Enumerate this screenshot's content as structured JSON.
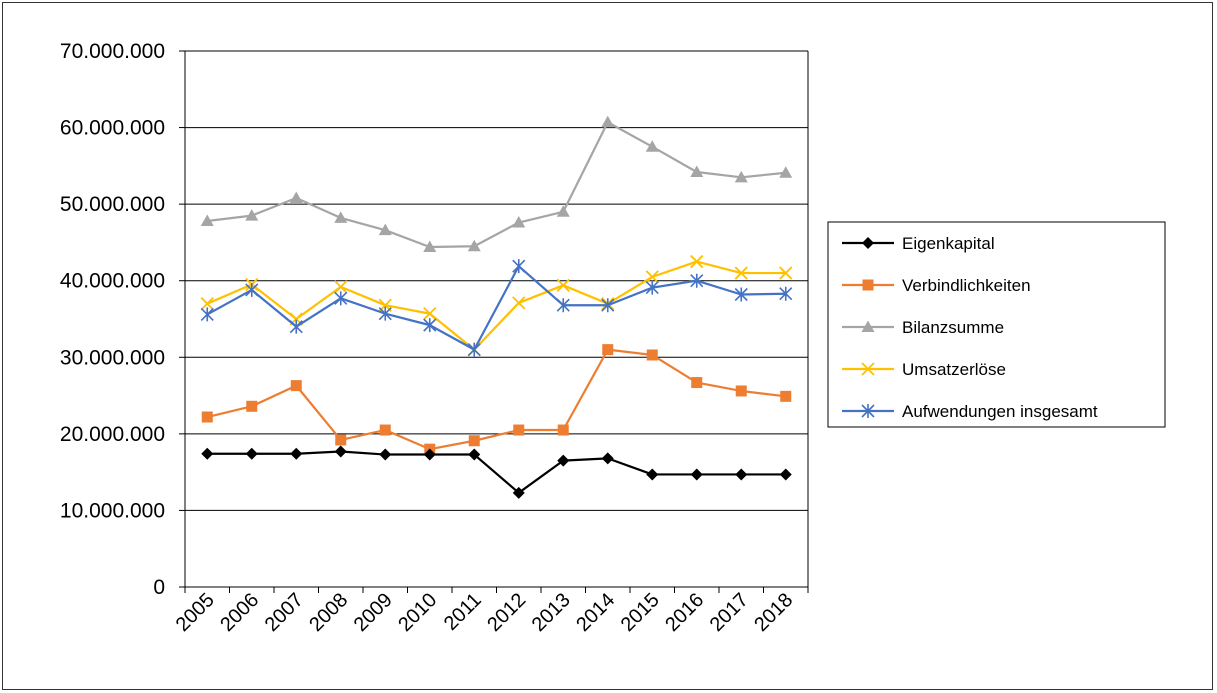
{
  "chart_data": {
    "type": "line",
    "title": "",
    "xlabel": "",
    "ylabel": "",
    "ylim": [
      0,
      70000000
    ],
    "y_ticks": [
      0,
      10000000,
      20000000,
      30000000,
      40000000,
      50000000,
      60000000,
      70000000
    ],
    "y_tick_labels": [
      "0",
      "10.000.000",
      "20.000.000",
      "30.000.000",
      "40.000.000",
      "50.000.000",
      "60.000.000",
      "70.000.000"
    ],
    "grid": true,
    "legend_position": "right",
    "categories": [
      "2005",
      "2006",
      "2007",
      "2008",
      "2009",
      "2010",
      "2011",
      "2012",
      "2013",
      "2014",
      "2015",
      "2016",
      "2017",
      "2018"
    ],
    "series": [
      {
        "name": "Eigenkapital",
        "color": "#000000",
        "marker": "diamond",
        "values": [
          17400000,
          17400000,
          17400000,
          17700000,
          17300000,
          17300000,
          17300000,
          12300000,
          16500000,
          16800000,
          14700000,
          14700000,
          14700000,
          14700000
        ]
      },
      {
        "name": "Verbindlichkeiten",
        "color": "#ED7D31",
        "marker": "square",
        "values": [
          22200000,
          23600000,
          26300000,
          19200000,
          20500000,
          18000000,
          19100000,
          20500000,
          20500000,
          31000000,
          30300000,
          26700000,
          25600000,
          24900000
        ]
      },
      {
        "name": "Bilanzsumme",
        "color": "#A5A5A5",
        "marker": "triangle",
        "values": [
          47800000,
          48500000,
          50800000,
          48200000,
          46600000,
          44400000,
          44500000,
          47600000,
          49000000,
          60700000,
          57500000,
          54200000,
          53500000,
          54100000
        ]
      },
      {
        "name": "Umsatzerlöse",
        "color": "#FFC000",
        "marker": "x",
        "values": [
          37000000,
          39500000,
          35000000,
          39200000,
          36800000,
          35700000,
          31000000,
          37100000,
          39400000,
          37000000,
          40500000,
          42500000,
          41000000,
          41000000
        ]
      },
      {
        "name": "Aufwendungen insgesamt",
        "color": "#4472C4",
        "marker": "star",
        "values": [
          35600000,
          38800000,
          34000000,
          37700000,
          35700000,
          34200000,
          31000000,
          41900000,
          36800000,
          36800000,
          39100000,
          40000000,
          38200000,
          38300000
        ]
      }
    ]
  }
}
